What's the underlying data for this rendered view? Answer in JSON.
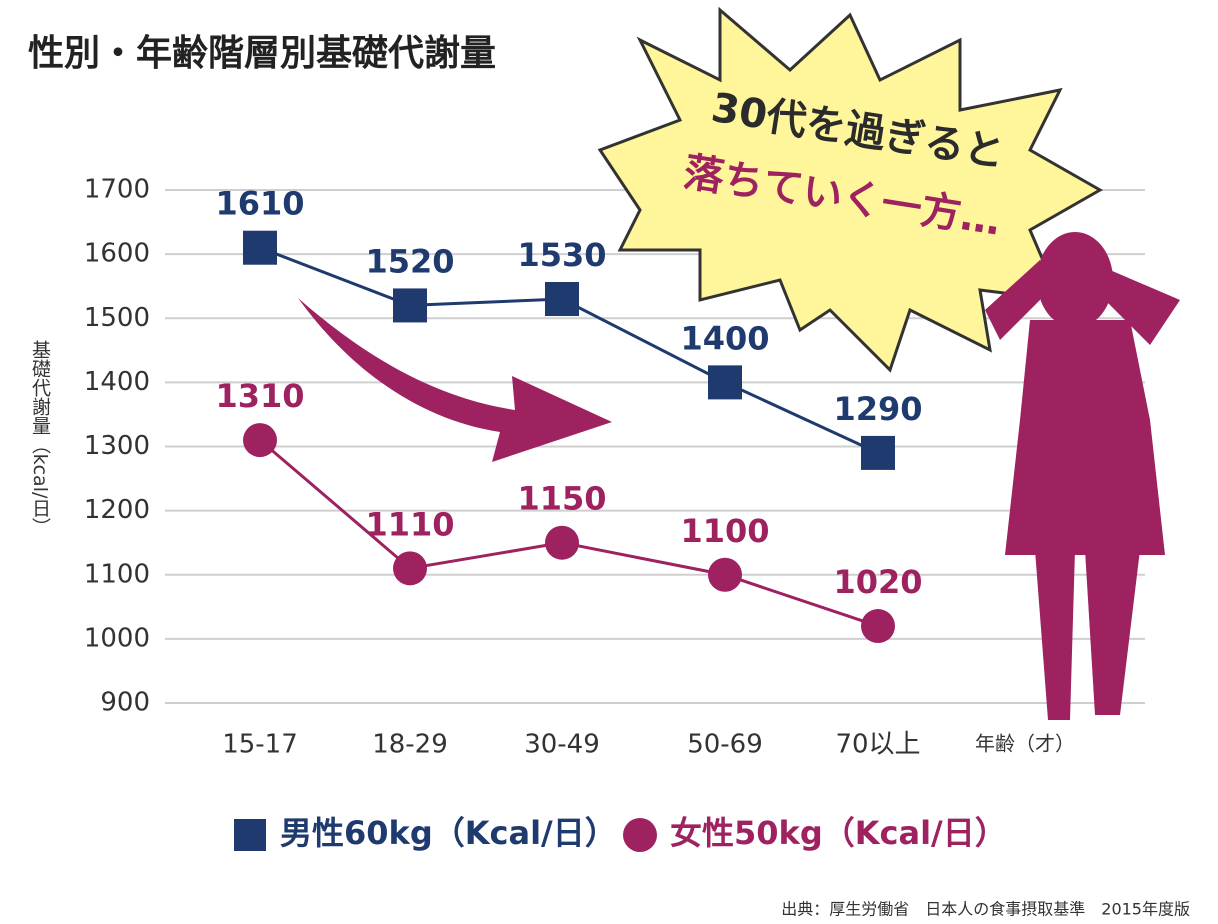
{
  "chart_data": {
    "type": "line",
    "title": "性別・年齢階層別基礎代謝量",
    "y_label": "基礎代謝量（kcal/日）",
    "x_label": "年齢（才）",
    "annotations": [
      "30代を過ぎると",
      "落ちていく一方…"
    ],
    "source": "出典：厚生労働省　日本人の食事摂取基準　2015年度版",
    "categories": [
      "15-17",
      "18-29",
      "30-49",
      "50-69",
      "70以上"
    ],
    "series": [
      {
        "name": "男性60kg（Kcal/日）",
        "color": "#1f3a6e",
        "marker": "square",
        "values": [
          1610,
          1520,
          1530,
          1400,
          1290
        ]
      },
      {
        "name": "女性50kg（Kcal/日）",
        "color": "#9e2160",
        "marker": "circle",
        "values": [
          1310,
          1110,
          1150,
          1100,
          1020
        ]
      }
    ],
    "ylim": [
      900,
      1700
    ],
    "yticks": [
      900,
      1000,
      1100,
      1200,
      1300,
      1400,
      1500,
      1600,
      1700
    ],
    "grid": true
  }
}
